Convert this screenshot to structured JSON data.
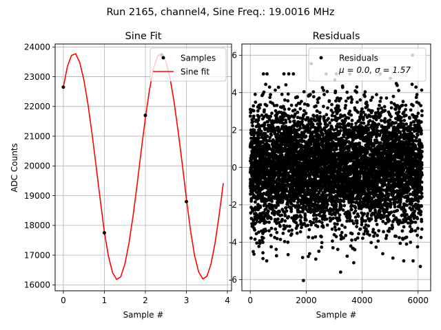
{
  "figure": {
    "suptitle": "Run 2165, channel4, Sine Freq.: 19.0016 MHz"
  },
  "chart_data": [
    {
      "type": "line",
      "title": "Sine Fit",
      "xlabel": "Sample #",
      "ylabel": "ADC Counts",
      "xlim": [
        -0.2,
        4.1
      ],
      "ylim": [
        15800,
        24100
      ],
      "xticks": [
        0,
        1,
        2,
        3,
        4
      ],
      "yticks": [
        16000,
        17000,
        18000,
        19000,
        20000,
        21000,
        22000,
        23000,
        24000
      ],
      "grid": true,
      "legend": {
        "position": "top-right",
        "entries": [
          "Samples",
          "Sine fit"
        ]
      },
      "series": [
        {
          "name": "Samples",
          "style": "markers",
          "color": "#000000",
          "x": [
            0,
            1,
            2,
            2.4,
            3
          ],
          "y": [
            22650,
            17750,
            21700,
            23730,
            18800
          ]
        },
        {
          "name": "Sine fit",
          "style": "line",
          "color": "#ff0000",
          "x": [
            0,
            0.1,
            0.2,
            0.3,
            0.4,
            0.5,
            0.6,
            0.7,
            0.8,
            0.9,
            1.0,
            1.1,
            1.2,
            1.3,
            1.4,
            1.5,
            1.6,
            1.7,
            1.8,
            1.9,
            2.0,
            2.1,
            2.2,
            2.3,
            2.4,
            2.5,
            2.6,
            2.7,
            2.8,
            2.9,
            3.0,
            3.1,
            3.2,
            3.3,
            3.4,
            3.5,
            3.6,
            3.7,
            3.8,
            3.9
          ],
          "y": [
            22650,
            23350,
            23720,
            23770,
            23480,
            22900,
            22080,
            21080,
            19980,
            18860,
            17780,
            16960,
            16410,
            16180,
            16270,
            16700,
            17400,
            18320,
            19390,
            20530,
            21610,
            22560,
            23280,
            23700,
            23780,
            23520,
            22960,
            22150,
            21150,
            20060,
            18900,
            17830,
            16980,
            16430,
            16200,
            16290,
            16700,
            17420,
            18370,
            19420
          ]
        }
      ]
    },
    {
      "type": "scatter",
      "title": "Residuals",
      "xlabel": "Sample #",
      "ylabel": "",
      "xlim": [
        -300,
        6450
      ],
      "ylim": [
        -6.6,
        6.6
      ],
      "xticks": [
        0,
        2000,
        4000,
        6000
      ],
      "yticks": [
        -6,
        -4,
        -2,
        0,
        2,
        4,
        6
      ],
      "grid": true,
      "legend": {
        "position": "top-right",
        "entries": [
          "Residuals",
          "μ = 0.0, σ = 1.57"
        ]
      },
      "distribution": {
        "n_points": 6144,
        "mean": 0.0,
        "std": 1.57
      },
      "outliers": [
        {
          "x": 2180,
          "y": 5.55
        },
        {
          "x": 5800,
          "y": 6.0
        },
        {
          "x": 1900,
          "y": -6.05
        },
        {
          "x": 6080,
          "y": -5.3
        },
        {
          "x": 3230,
          "y": -5.6
        },
        {
          "x": 600,
          "y": 5.0
        },
        {
          "x": 3700,
          "y": -5.1
        },
        {
          "x": 4650,
          "y": 5.0
        },
        {
          "x": 5100,
          "y": -4.85
        }
      ]
    }
  ]
}
